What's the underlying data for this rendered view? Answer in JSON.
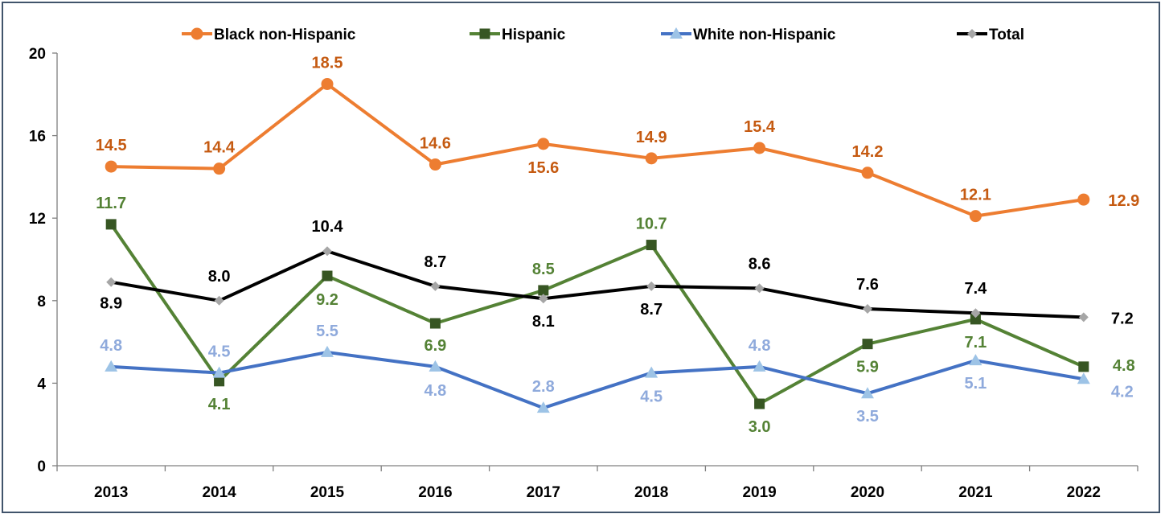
{
  "chart_data": {
    "type": "line",
    "title": "",
    "xlabel": "",
    "ylabel": "",
    "categories": [
      "2013",
      "2014",
      "2015",
      "2016",
      "2017",
      "2018",
      "2019",
      "2020",
      "2021",
      "2022"
    ],
    "ylim": [
      0,
      20
    ],
    "yticks": [
      0,
      4,
      8,
      12,
      16,
      20
    ],
    "grid": false,
    "legend_position": "top",
    "series": [
      {
        "name": "Black non-Hispanic",
        "color": "#ed7d31",
        "label_color": "#c55a11",
        "marker": "circle",
        "values": [
          14.5,
          14.4,
          18.5,
          14.6,
          15.6,
          14.9,
          15.4,
          14.2,
          12.1,
          12.9
        ],
        "value_labels": [
          "14.5",
          "14.4",
          "18.5",
          "14.6",
          "15.6",
          "14.9",
          "15.4",
          "14.2",
          "12.1",
          "12.9"
        ]
      },
      {
        "name": "Hispanic",
        "color": "#548235",
        "label_color": "#548235",
        "marker_color": "#375623",
        "marker": "square",
        "values": [
          11.7,
          4.1,
          9.2,
          6.9,
          8.5,
          10.7,
          3.0,
          5.9,
          7.1,
          4.8
        ],
        "value_labels": [
          "11.7",
          "4.1",
          "9.2",
          "6.9",
          "8.5",
          "10.7",
          "3.0",
          "5.9",
          "7.1",
          "4.8"
        ]
      },
      {
        "name": "White non-Hispanic",
        "color": "#4472c4",
        "label_color": "#8faadc",
        "marker_color": "#9dc3e6",
        "marker": "triangle",
        "values": [
          4.8,
          4.5,
          5.5,
          4.8,
          2.8,
          4.5,
          4.8,
          3.5,
          5.1,
          4.2
        ],
        "value_labels": [
          "4.8",
          "4.5",
          "5.5",
          "4.8",
          "2.8",
          "4.5",
          "4.8",
          "3.5",
          "5.1",
          "4.2"
        ]
      },
      {
        "name": "Total",
        "color": "#000000",
        "label_color": "#000000",
        "marker_color": "#a6a6a6",
        "marker": "diamond",
        "values": [
          8.9,
          8.0,
          10.4,
          8.7,
          8.1,
          8.7,
          8.6,
          7.6,
          7.4,
          7.2
        ],
        "value_labels": [
          "8.9",
          "8.0",
          "10.4",
          "8.7",
          "8.1",
          "8.7",
          "8.6",
          "7.6",
          "7.4",
          "7.2"
        ]
      }
    ]
  }
}
